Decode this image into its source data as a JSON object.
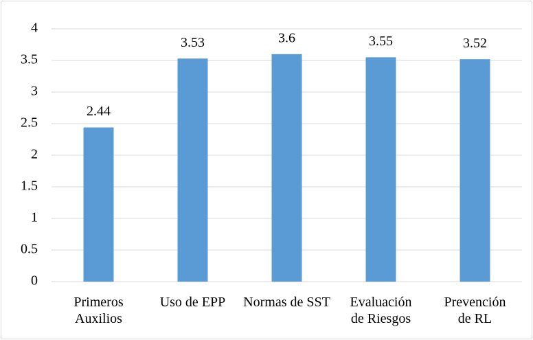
{
  "chart_data": {
    "type": "bar",
    "categories": [
      "Primeros Auxilios",
      "Uso de EPP",
      "Normas de SST",
      "Evaluación de Riesgos",
      "Prevención de RL"
    ],
    "values": [
      2.44,
      3.53,
      3.6,
      3.55,
      3.52
    ],
    "color": "#5b9bd5",
    "ylim": [
      0,
      4
    ],
    "yticks": [
      0,
      0.5,
      1,
      1.5,
      2,
      2.5,
      3,
      3.5,
      4
    ],
    "grid": true,
    "data_labels": true
  }
}
